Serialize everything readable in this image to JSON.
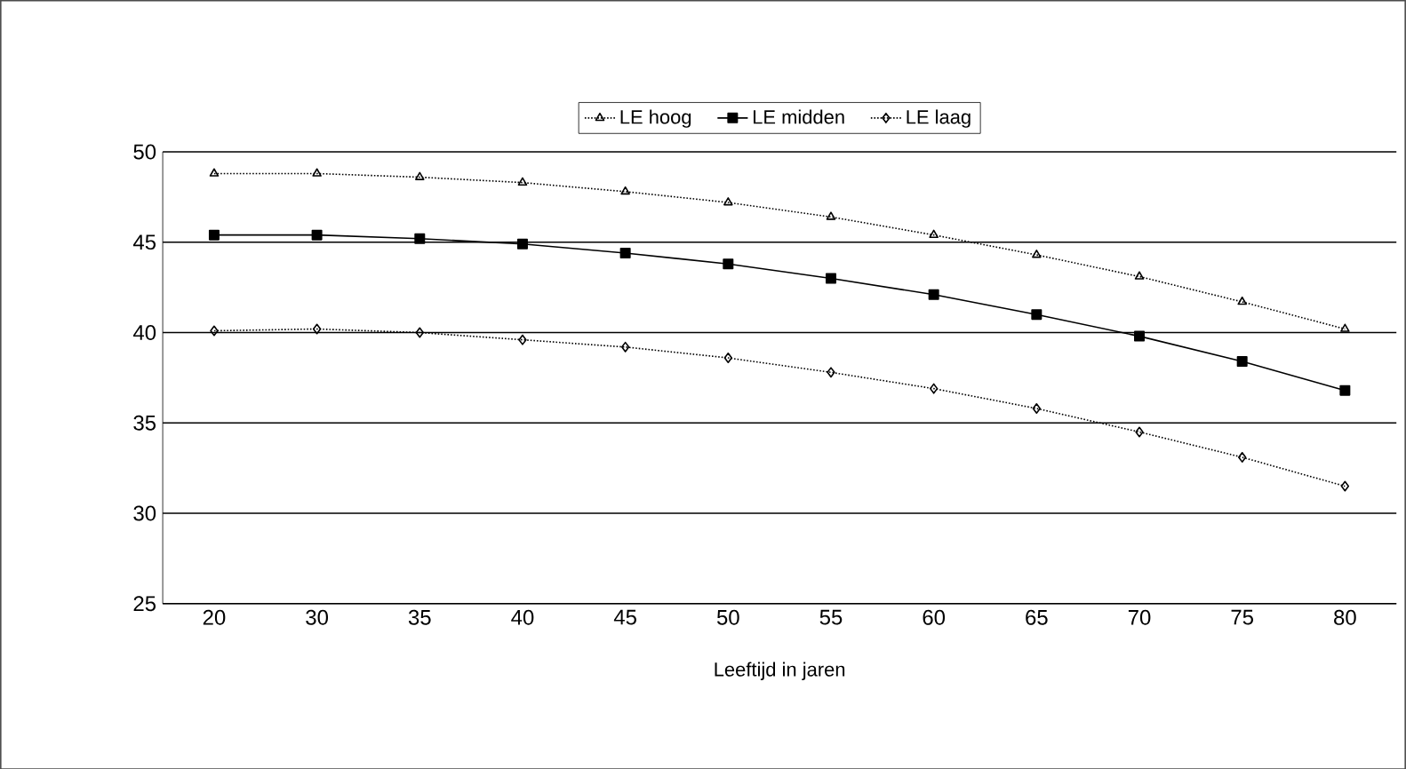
{
  "chart_data": {
    "type": "line",
    "xlabel": "Leeftijd in jaren",
    "categories": [
      "20",
      "30",
      "35",
      "40",
      "45",
      "50",
      "55",
      "60",
      "65",
      "70",
      "75",
      "80"
    ],
    "series": [
      {
        "name": "LE hoog",
        "color": "#000000",
        "marker": "triangle",
        "line_style": "dotted",
        "values": [
          48.8,
          48.8,
          48.6,
          48.3,
          47.8,
          47.2,
          46.4,
          45.4,
          44.3,
          43.1,
          41.7,
          40.2
        ]
      },
      {
        "name": "LE midden",
        "color": "#000000",
        "marker": "square",
        "line_style": "solid",
        "values": [
          45.4,
          45.4,
          45.2,
          44.9,
          44.4,
          43.8,
          43.0,
          42.1,
          41.0,
          39.8,
          38.4,
          36.8
        ]
      },
      {
        "name": "LE laag",
        "color": "#000000",
        "marker": "diamond",
        "line_style": "dotted",
        "values": [
          40.1,
          40.2,
          40.0,
          39.6,
          39.2,
          38.6,
          37.8,
          36.9,
          35.8,
          34.5,
          33.1,
          31.5
        ]
      }
    ],
    "ylim": [
      25,
      50
    ],
    "yticks": [
      25,
      30,
      35,
      40,
      45,
      50
    ],
    "grid": "y",
    "legend": "top"
  }
}
